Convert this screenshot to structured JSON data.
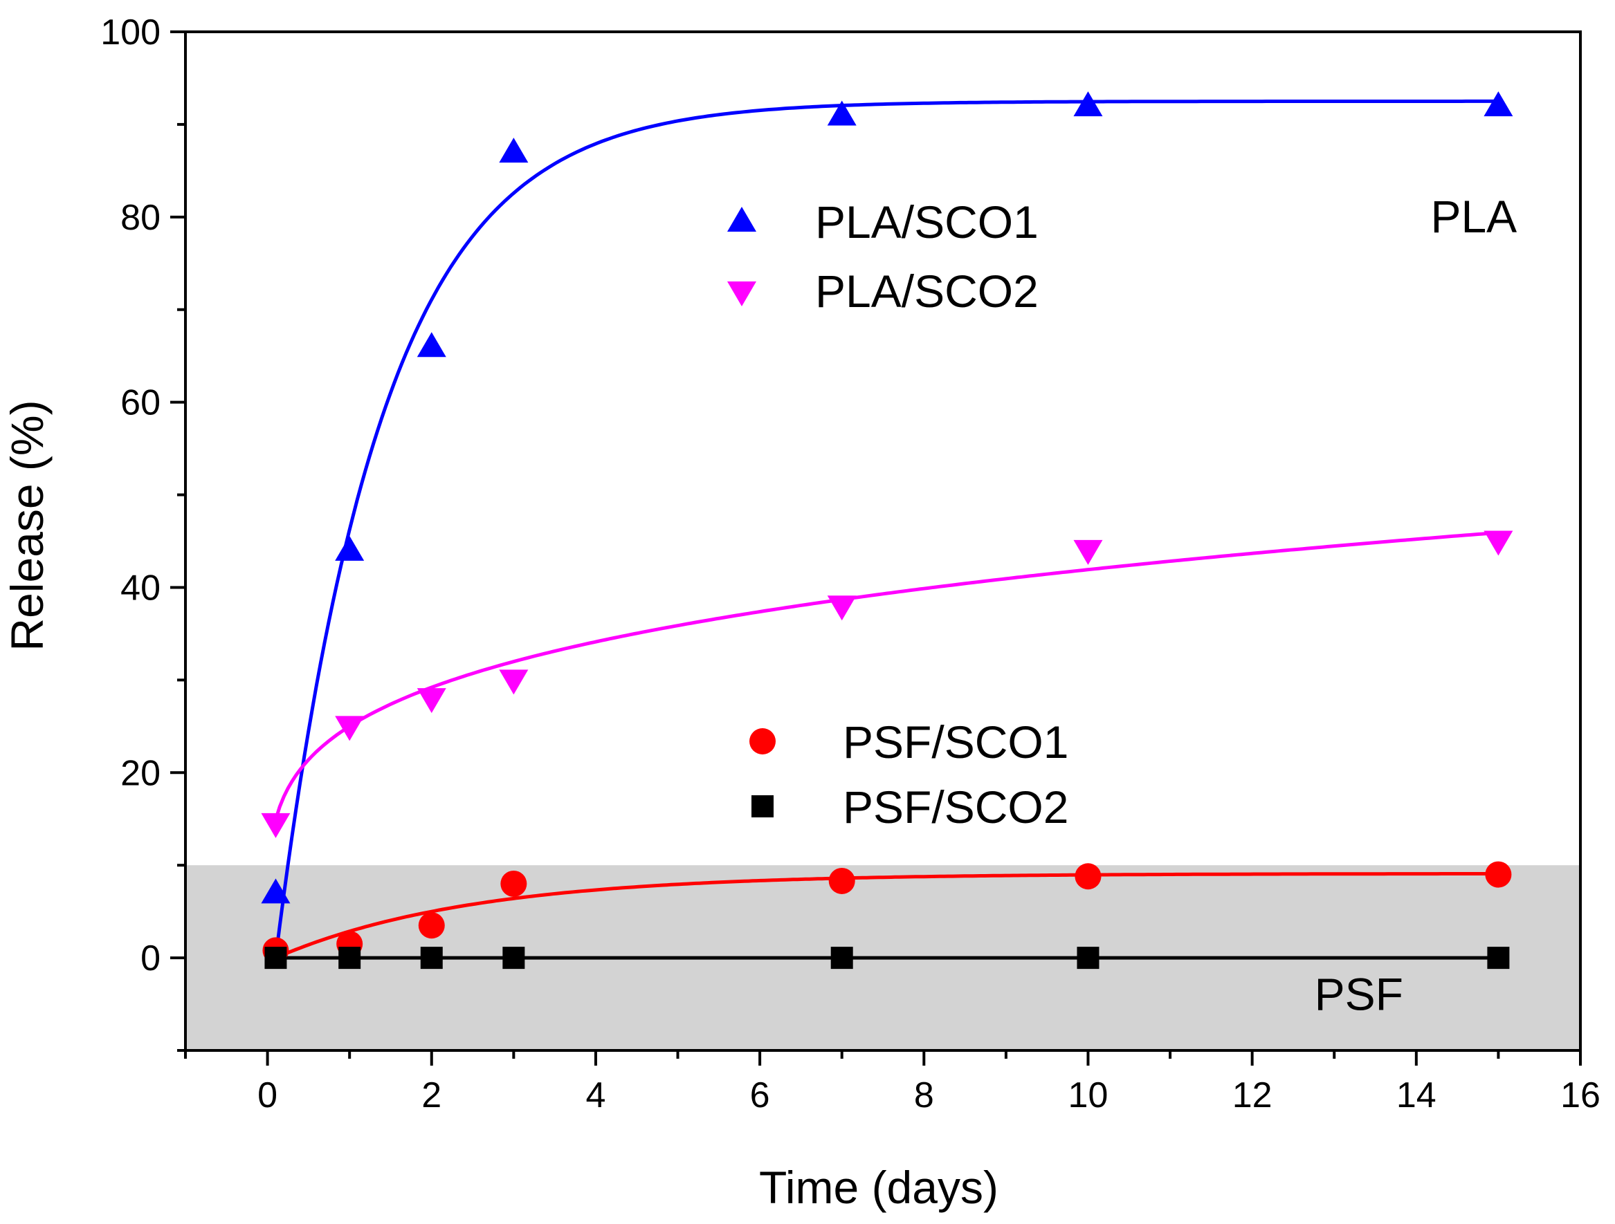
{
  "chart_data": {
    "type": "scatter",
    "xlabel": "Time (days)",
    "ylabel": "Release (%)",
    "xlim": [
      -1,
      16
    ],
    "ylim": [
      -10,
      100
    ],
    "xticks": [
      0,
      2,
      4,
      6,
      8,
      10,
      12,
      14,
      16
    ],
    "yticks": [
      0,
      20,
      40,
      60,
      80,
      100
    ],
    "grid": false,
    "legend_position": "center",
    "shaded_region": {
      "y0": -10,
      "y1": 10,
      "color": "#d3d3d3"
    },
    "annotations": [
      {
        "text": "PLA",
        "x": 14.7,
        "y": 80
      },
      {
        "text": "PSF",
        "x": 13.3,
        "y": -4
      }
    ],
    "series": [
      {
        "name": "PLA/SCO1",
        "marker": "triangle-up",
        "color": "#0000ff",
        "x": [
          0.1,
          1,
          2,
          3,
          7,
          10,
          15
        ],
        "y": [
          7,
          44,
          66,
          87,
          91,
          92,
          92
        ]
      },
      {
        "name": "PLA/SCO2",
        "marker": "triangle-down",
        "color": "#ff00ff",
        "x": [
          0.1,
          1,
          2,
          3,
          7,
          10,
          15
        ],
        "y": [
          14.5,
          25,
          28,
          30,
          38,
          44,
          45
        ]
      },
      {
        "name": "PSF/SCO1",
        "marker": "circle",
        "color": "#ff0000",
        "x": [
          0.1,
          1,
          2,
          3,
          7,
          10,
          15
        ],
        "y": [
          0.8,
          1.5,
          3.5,
          8,
          8.3,
          8.8,
          9
        ]
      },
      {
        "name": "PSF/SCO2",
        "marker": "square",
        "color": "#000000",
        "x": [
          0.1,
          1,
          2,
          3,
          7,
          10,
          15
        ],
        "y": [
          0,
          0,
          0,
          0,
          0,
          0,
          0
        ]
      }
    ],
    "fits": [
      {
        "series": "PLA/SCO1",
        "model": "exponential",
        "color": "#0000ff",
        "y0": 0,
        "amp": 92.5,
        "k": 0.77,
        "xmin": 0.1,
        "xmax": 15
      },
      {
        "series": "PLA/SCO2",
        "model": "power",
        "color": "#ff00ff",
        "a": 25,
        "b": 0.2245,
        "xmin": 0.1,
        "xmax": 15
      },
      {
        "series": "PSF/SCO1",
        "model": "exponential",
        "color": "#ff0000",
        "y0": 0,
        "amp": 9.1,
        "k": 0.42,
        "xmin": 0.1,
        "xmax": 15
      },
      {
        "series": "PSF/SCO2",
        "model": "constant",
        "color": "#000000",
        "value": 0,
        "xmin": 0.1,
        "xmax": 15
      }
    ]
  }
}
